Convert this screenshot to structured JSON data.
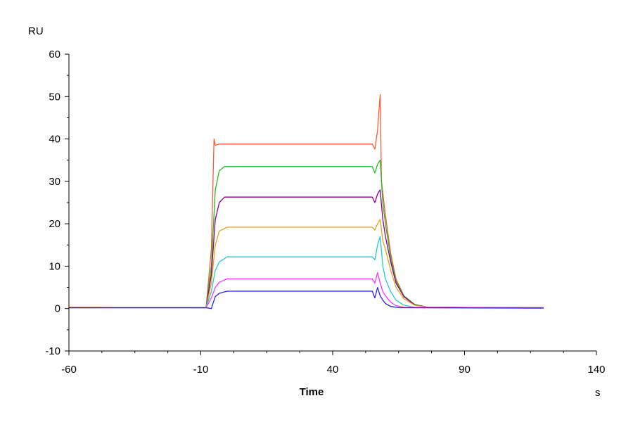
{
  "chart_data": {
    "type": "line",
    "title": "",
    "xlabel": "Time",
    "ylabel": "",
    "x_unit": "s",
    "y_unit": "RU",
    "xlim": [
      -60,
      140
    ],
    "ylim": [
      -10,
      60
    ],
    "x_ticks": [
      "-60",
      "-10",
      "40",
      "90",
      "140"
    ],
    "y_ticks": [
      "-10",
      "0",
      "10",
      "20",
      "30",
      "40",
      "50",
      "60"
    ],
    "grid": false,
    "legend": "none",
    "series": [
      {
        "color": "#ff5a36",
        "values": [
          [
            -60,
            0.3
          ],
          [
            -8,
            0.2
          ],
          [
            -6,
            14
          ],
          [
            -5,
            40
          ],
          [
            -4.5,
            38.5
          ],
          [
            -3,
            38.8
          ],
          [
            55,
            38.8
          ],
          [
            56,
            37.6
          ],
          [
            57,
            42
          ],
          [
            58,
            50.5
          ],
          [
            58.5,
            30
          ],
          [
            60,
            22
          ],
          [
            62,
            13
          ],
          [
            64,
            7
          ],
          [
            67,
            3
          ],
          [
            71,
            1
          ],
          [
            76,
            0.3
          ],
          [
            120,
            0.2
          ]
        ]
      },
      {
        "color": "#22bb22",
        "values": [
          [
            -60,
            0.2
          ],
          [
            -8,
            0.2
          ],
          [
            -6,
            10
          ],
          [
            -4.5,
            28
          ],
          [
            -3,
            32.5
          ],
          [
            -1,
            33.5
          ],
          [
            55,
            33.5
          ],
          [
            56,
            32
          ],
          [
            57,
            34
          ],
          [
            58,
            35
          ],
          [
            59,
            25
          ],
          [
            60,
            20
          ],
          [
            62,
            12
          ],
          [
            64,
            6.5
          ],
          [
            67,
            3
          ],
          [
            71,
            1
          ],
          [
            76,
            0.3
          ],
          [
            120,
            0.2
          ]
        ]
      },
      {
        "color": "#8b008b",
        "values": [
          [
            -60,
            0.2
          ],
          [
            -8,
            0.2
          ],
          [
            -6,
            8
          ],
          [
            -4.5,
            21
          ],
          [
            -3,
            25
          ],
          [
            -1,
            26.3
          ],
          [
            55,
            26.3
          ],
          [
            56,
            25
          ],
          [
            57,
            27
          ],
          [
            58,
            28
          ],
          [
            59,
            21
          ],
          [
            60,
            17
          ],
          [
            62,
            11
          ],
          [
            64,
            6
          ],
          [
            67,
            2.8
          ],
          [
            71,
            0.9
          ],
          [
            76,
            0.3
          ],
          [
            120,
            0.2
          ]
        ]
      },
      {
        "color": "#e8a020",
        "values": [
          [
            -60,
            0.3
          ],
          [
            -8,
            0.2
          ],
          [
            -6,
            6
          ],
          [
            -4.5,
            15
          ],
          [
            -3,
            18.3
          ],
          [
            0,
            19.2
          ],
          [
            55,
            19.2
          ],
          [
            56,
            18.5
          ],
          [
            57,
            20
          ],
          [
            58,
            21
          ],
          [
            59,
            16
          ],
          [
            60,
            14
          ],
          [
            62,
            9
          ],
          [
            64,
            5
          ],
          [
            67,
            2.3
          ],
          [
            71,
            0.8
          ],
          [
            76,
            0.3
          ],
          [
            120,
            0.2
          ]
        ]
      },
      {
        "color": "#22cccc",
        "values": [
          [
            -60,
            0.2
          ],
          [
            -8,
            0.2
          ],
          [
            -6,
            4
          ],
          [
            -4.5,
            9
          ],
          [
            -3,
            11
          ],
          [
            0,
            12.2
          ],
          [
            55,
            12.2
          ],
          [
            56,
            11.5
          ],
          [
            57,
            15
          ],
          [
            58,
            17
          ],
          [
            59,
            10
          ],
          [
            60,
            7
          ],
          [
            62,
            4
          ],
          [
            64,
            2
          ],
          [
            67,
            0.8
          ],
          [
            71,
            0.3
          ],
          [
            120,
            0.2
          ]
        ]
      },
      {
        "color": "#ff33ff",
        "values": [
          [
            -60,
            0.2
          ],
          [
            -8,
            0.2
          ],
          [
            -6,
            2.5
          ],
          [
            -4.5,
            5
          ],
          [
            -3,
            6.2
          ],
          [
            0,
            7
          ],
          [
            55,
            7
          ],
          [
            56,
            6
          ],
          [
            57,
            8.5
          ],
          [
            58,
            6
          ],
          [
            59,
            4
          ],
          [
            60,
            3
          ],
          [
            62,
            1.5
          ],
          [
            64,
            0.7
          ],
          [
            67,
            0.3
          ],
          [
            120,
            0.2
          ]
        ]
      },
      {
        "color": "#2222ee",
        "values": [
          [
            -60,
            0.2
          ],
          [
            -8,
            0.2
          ],
          [
            -6,
            0
          ],
          [
            -5.5,
            1
          ],
          [
            -4.5,
            2.8
          ],
          [
            -3,
            3.6
          ],
          [
            0,
            4.1
          ],
          [
            55,
            4.1
          ],
          [
            56,
            2.5
          ],
          [
            57,
            5
          ],
          [
            58,
            3
          ],
          [
            59,
            2
          ],
          [
            60,
            1.2
          ],
          [
            62,
            0.5
          ],
          [
            65,
            0.2
          ],
          [
            120,
            0.1
          ]
        ]
      }
    ]
  }
}
